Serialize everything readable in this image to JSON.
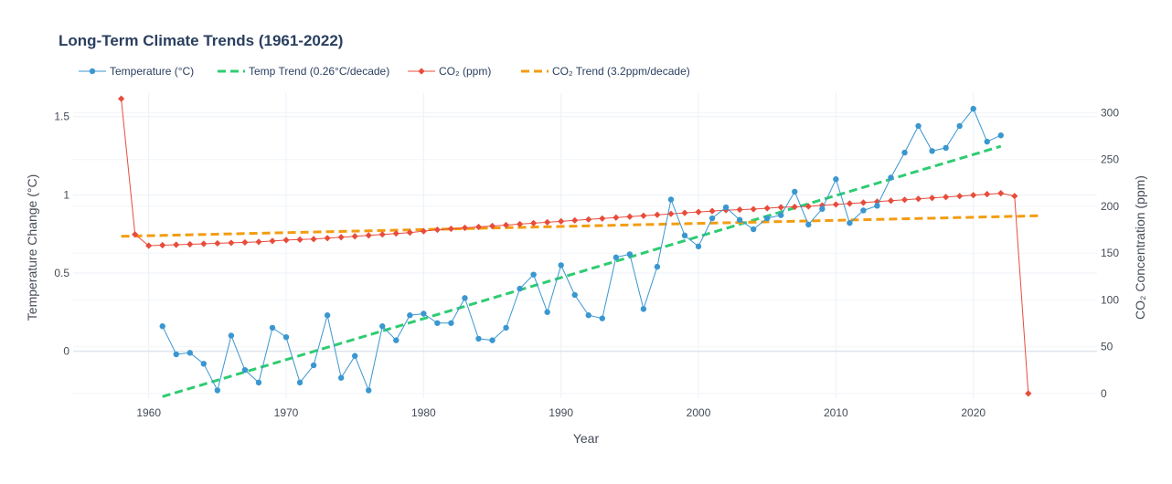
{
  "chart_data": {
    "type": "line",
    "title": "Long-Term Climate Trends (1961-2022)",
    "xlabel": "Year",
    "ylabel_left": "Temperature Change (°C)",
    "ylabel_right": "CO₂ Concentration (ppm)",
    "xlim": [
      1954.5,
      2029
    ],
    "ylim_left": [
      -0.3,
      1.65
    ],
    "ylim_right": [
      -5,
      321
    ],
    "x_ticks": [
      1960,
      1970,
      1980,
      1990,
      2000,
      2010,
      2020
    ],
    "y_left_ticks": [
      0,
      0.5,
      1,
      1.5
    ],
    "y_right_ticks": [
      0,
      50,
      100,
      150,
      200,
      250,
      300
    ],
    "grid": true,
    "legend_position": "top",
    "series": [
      {
        "name": "Temperature (°C)",
        "axis": "left",
        "style": "line+markers",
        "color": "#3a97d0",
        "x": [
          1961,
          1962,
          1963,
          1964,
          1965,
          1966,
          1967,
          1968,
          1969,
          1970,
          1971,
          1972,
          1973,
          1974,
          1975,
          1976,
          1977,
          1978,
          1979,
          1980,
          1981,
          1982,
          1983,
          1984,
          1985,
          1986,
          1987,
          1988,
          1989,
          1990,
          1991,
          1992,
          1993,
          1994,
          1995,
          1996,
          1997,
          1998,
          1999,
          2000,
          2001,
          2002,
          2003,
          2004,
          2005,
          2006,
          2007,
          2008,
          2009,
          2010,
          2011,
          2012,
          2013,
          2014,
          2015,
          2016,
          2017,
          2018,
          2019,
          2020,
          2021,
          2022
        ],
        "y": [
          0.16,
          -0.02,
          -0.01,
          -0.08,
          -0.25,
          0.1,
          -0.12,
          -0.2,
          0.15,
          0.09,
          -0.2,
          -0.09,
          0.23,
          -0.17,
          -0.03,
          -0.25,
          0.16,
          0.07,
          0.23,
          0.24,
          0.18,
          0.18,
          0.34,
          0.08,
          0.07,
          0.15,
          0.4,
          0.49,
          0.25,
          0.55,
          0.36,
          0.23,
          0.21,
          0.6,
          0.62,
          0.27,
          0.54,
          0.97,
          0.74,
          0.67,
          0.85,
          0.92,
          0.84,
          0.78,
          0.85,
          0.87,
          1.02,
          0.81,
          0.91,
          1.1,
          0.82,
          0.9,
          0.93,
          1.11,
          1.27,
          1.44,
          1.28,
          1.3,
          1.44,
          1.55,
          1.34,
          1.38
        ]
      },
      {
        "name": "Temp Trend (0.26°C/decade)",
        "axis": "left",
        "style": "dashed",
        "color": "#2ecc71",
        "x": [
          1961,
          2022
        ],
        "y": [
          -0.29,
          1.31
        ]
      },
      {
        "name": "CO₂ (ppm)",
        "axis": "right",
        "style": "line+markers",
        "color": "#e74c3c",
        "x": [
          1958,
          1959,
          1960,
          1961,
          1962,
          1963,
          1964,
          1965,
          1966,
          1967,
          1968,
          1969,
          1970,
          1971,
          1972,
          1973,
          1974,
          1975,
          1976,
          1977,
          1978,
          1979,
          1980,
          1981,
          1982,
          1983,
          1984,
          1985,
          1986,
          1987,
          1988,
          1989,
          1990,
          1991,
          1992,
          1993,
          1994,
          1995,
          1996,
          1997,
          1998,
          1999,
          2000,
          2001,
          2002,
          2003,
          2004,
          2005,
          2006,
          2007,
          2008,
          2009,
          2010,
          2011,
          2012,
          2013,
          2014,
          2015,
          2016,
          2017,
          2018,
          2019,
          2020,
          2021,
          2022,
          2023,
          2024
        ],
        "y": [
          315,
          170,
          158,
          158.5,
          159,
          159.5,
          160,
          160.5,
          161,
          161.5,
          162,
          163,
          164,
          164.5,
          165,
          166,
          167,
          168,
          169,
          170,
          171,
          172,
          173.5,
          175,
          176,
          177,
          178,
          179,
          180,
          181,
          182,
          183,
          184,
          185,
          186,
          187,
          188,
          189,
          190,
          191,
          192,
          193,
          194,
          195,
          196,
          196.5,
          197,
          198,
          199,
          199.5,
          200,
          201,
          202,
          203,
          204,
          205,
          206,
          207,
          208,
          209,
          210,
          211,
          212,
          213,
          214,
          211,
          0
        ]
      },
      {
        "name": "CO₂ Trend (3.2ppm/decade)",
        "axis": "right",
        "style": "dashed",
        "color": "#f39c12",
        "x": [
          1958,
          2025
        ],
        "y": [
          168,
          190
        ]
      }
    ]
  }
}
